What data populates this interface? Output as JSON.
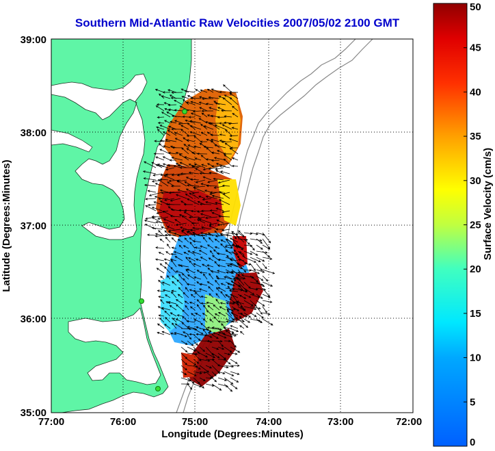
{
  "title": "Southern Mid-Atlantic Raw Velocities 2007/05/02 2100 GMT",
  "x_axis": {
    "label": "Longitude (Degrees:Minutes)",
    "ticks": [
      "77:00",
      "76:00",
      "75:00",
      "74:00",
      "73:00",
      "72:00"
    ]
  },
  "y_axis": {
    "label": "Latitude (Degrees:Minutes)",
    "ticks": [
      "39:00",
      "38:00",
      "37:00",
      "36:00",
      "35:00"
    ]
  },
  "colorbar": {
    "label": "Surface Velocity (cm/s)",
    "ticks": [
      "0",
      "5",
      "10",
      "15",
      "20",
      "25",
      "30",
      "35",
      "40",
      "45",
      "50"
    ],
    "min": 0,
    "max": 50,
    "colormap": "jet"
  },
  "colors": {
    "land": "#5ff5a6",
    "water": "#ffffff",
    "title": "#0000cc",
    "station": "#33dd33"
  },
  "stations": [
    "north-station",
    "middle-station",
    "south-station"
  ]
}
